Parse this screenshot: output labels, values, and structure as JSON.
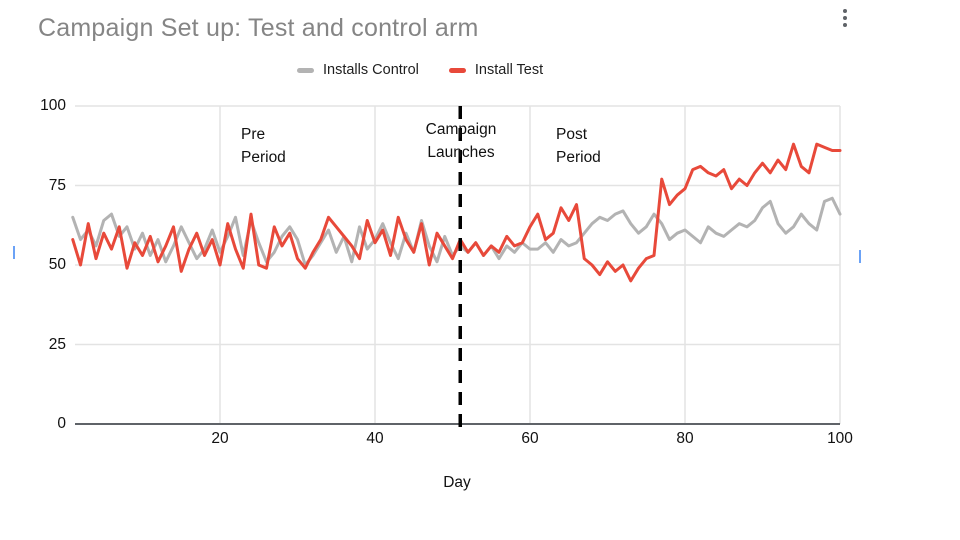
{
  "menu": {
    "more_options_icon": "kebab-vertical-dots"
  },
  "accent_colors": {
    "control_gray": "#b3b3b3",
    "test_red": "#e8493a",
    "cursor_blue": "#6ba2f6"
  },
  "chart_data": {
    "type": "line",
    "title": "Campaign Set up: Test and control arm",
    "xlabel": "Day",
    "ylabel": "",
    "x_days": {
      "start": 1,
      "end": 100,
      "step": 1
    },
    "xlim": [
      1,
      100
    ],
    "ylim": [
      0,
      100
    ],
    "xticks": [
      20,
      40,
      60,
      80,
      100
    ],
    "yticks": [
      0,
      25,
      50,
      75,
      100
    ],
    "grid": true,
    "legend_position": "top-center",
    "series": [
      {
        "name": "Installs Control",
        "color": "#b3b3b3",
        "values": [
          65,
          58,
          61,
          56,
          64,
          66,
          59,
          62,
          55,
          60,
          53,
          58,
          51,
          56,
          62,
          57,
          52,
          55,
          61,
          54,
          59,
          65,
          53,
          64,
          57,
          51,
          54,
          59,
          62,
          58,
          50,
          53,
          57,
          61,
          54,
          59,
          51,
          62,
          55,
          58,
          63,
          57,
          52,
          60,
          54,
          64,
          56,
          51,
          59,
          53,
          56,
          54,
          57,
          53,
          56,
          52,
          56,
          54,
          57,
          55,
          55,
          57,
          54,
          58,
          56,
          57,
          60,
          63,
          65,
          64,
          66,
          67,
          63,
          60,
          62,
          66,
          63,
          58,
          60,
          61,
          59,
          57,
          62,
          60,
          59,
          61,
          63,
          62,
          64,
          68,
          70,
          63,
          60,
          62,
          66,
          63,
          61,
          70,
          71,
          66
        ]
      },
      {
        "name": "Install Test",
        "color": "#e8493a",
        "values": [
          58,
          50,
          63,
          52,
          60,
          55,
          62,
          49,
          57,
          53,
          59,
          51,
          56,
          62,
          48,
          55,
          60,
          53,
          58,
          50,
          63,
          55,
          49,
          66,
          50,
          49,
          62,
          56,
          60,
          52,
          49,
          54,
          58,
          65,
          62,
          59,
          56,
          52,
          64,
          57,
          61,
          53,
          65,
          58,
          54,
          63,
          50,
          60,
          56,
          52,
          58,
          54,
          57,
          53,
          56,
          54,
          59,
          56,
          57,
          62,
          66,
          58,
          60,
          68,
          64,
          69,
          52,
          50,
          47,
          51,
          48,
          50,
          45,
          49,
          52,
          53,
          77,
          69,
          72,
          74,
          80,
          81,
          79,
          78,
          80,
          74,
          77,
          75,
          79,
          82,
          79,
          83,
          80,
          88,
          81,
          79,
          88,
          87,
          86,
          86
        ]
      }
    ],
    "vline": {
      "x": 51,
      "style": "dashed",
      "color": "#000000"
    },
    "annotations": [
      {
        "text": "Pre\nPeriod",
        "x_day": 23,
        "y": 92
      },
      {
        "text": "Campaign\nLaunches",
        "x_day": 51,
        "y": 94
      },
      {
        "text": "Post\nPeriod",
        "x_day": 64,
        "y": 92
      }
    ]
  }
}
